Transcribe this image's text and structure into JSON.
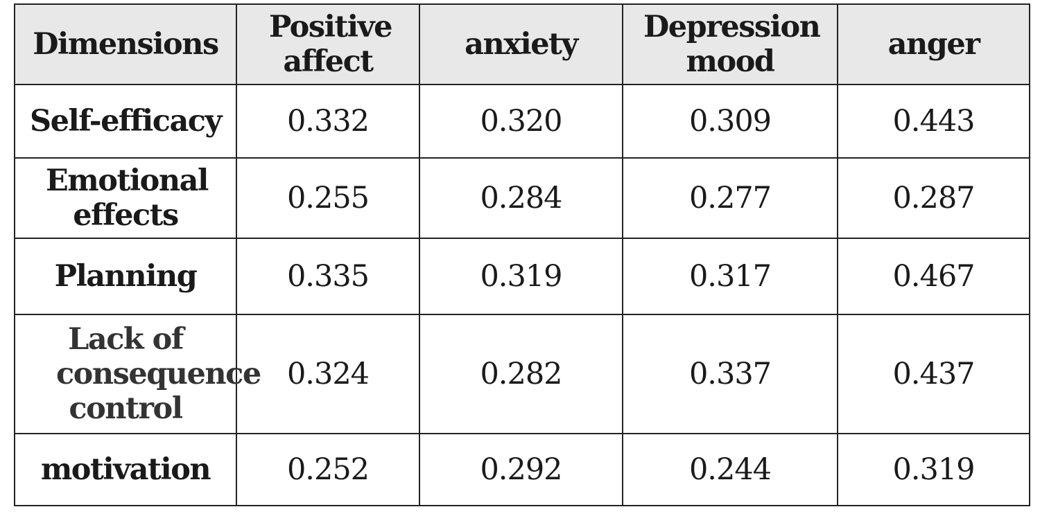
{
  "table": {
    "headers": [
      "Dimensions",
      "Positive affect",
      "anxiety",
      "Depression mood",
      "anger"
    ],
    "rows": [
      {
        "label": "Self-efficacy",
        "values": [
          "0.332",
          "0.320",
          "0.309",
          "0.443"
        ]
      },
      {
        "label": "Emotional effects",
        "values": [
          "0.255",
          "0.284",
          "0.277",
          "0.287"
        ]
      },
      {
        "label": "Planning",
        "values": [
          "0.335",
          "0.319",
          "0.317",
          "0.467"
        ]
      },
      {
        "label": "Lack of consequence control",
        "values": [
          "0.324",
          "0.282",
          "0.337",
          "0.437"
        ]
      },
      {
        "label": "motivation",
        "values": [
          "0.252",
          "0.292",
          "0.244",
          "0.319"
        ]
      }
    ]
  }
}
